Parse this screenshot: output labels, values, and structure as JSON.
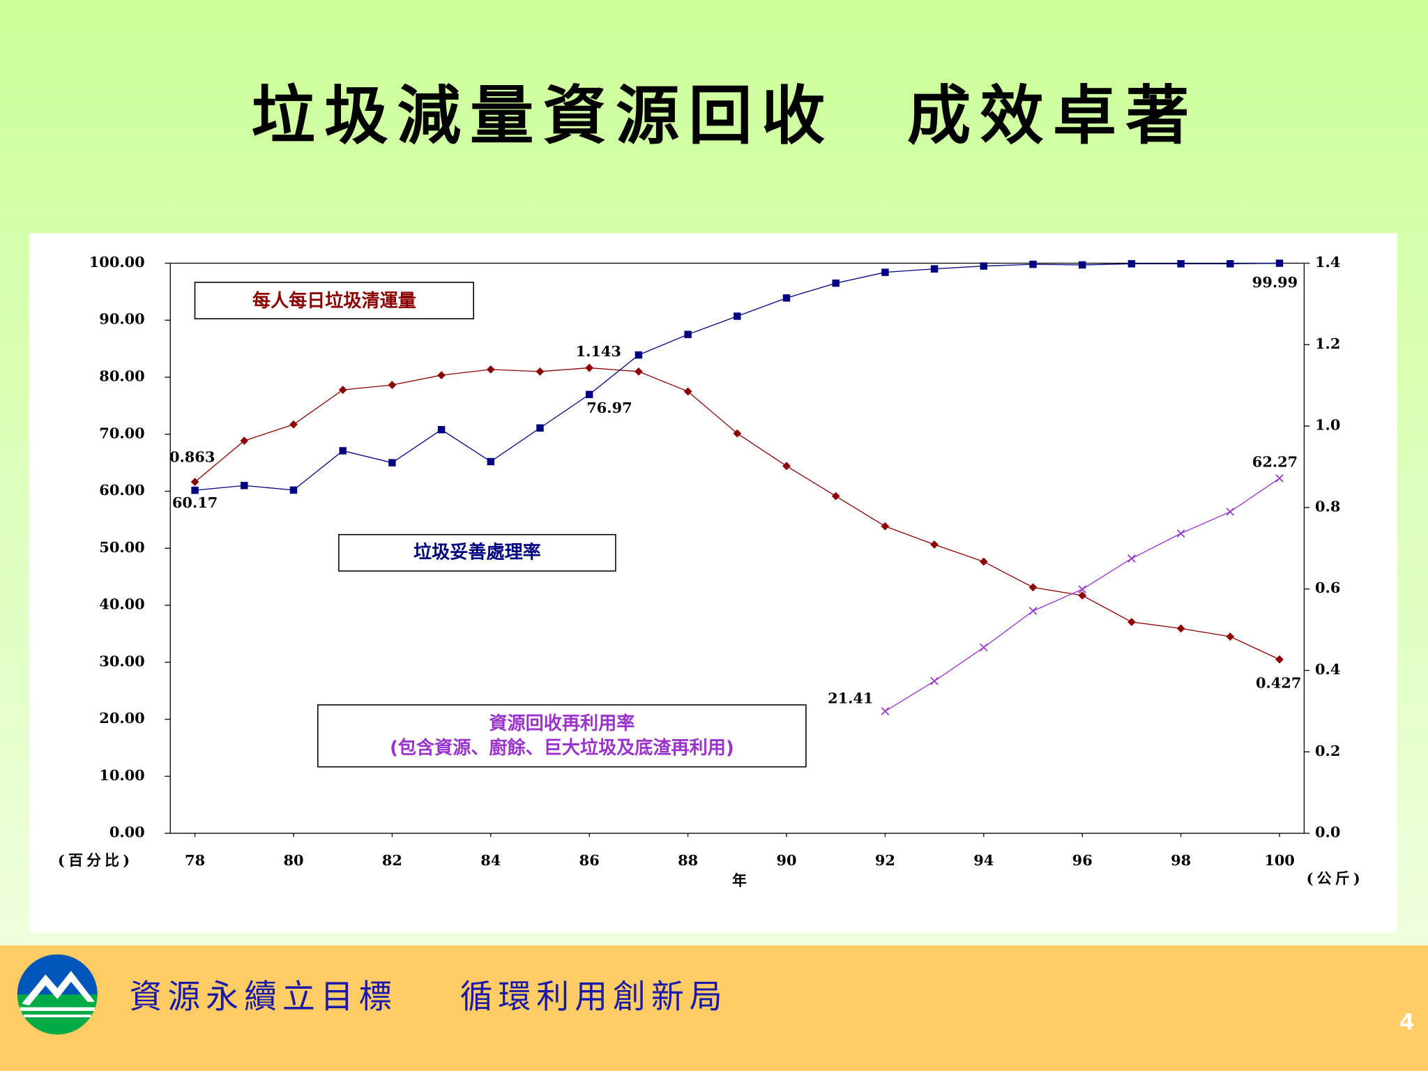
{
  "title": "垃圾減量資源回收　成效卓著",
  "footer": {
    "slogan_left": "資源永續立目標",
    "slogan_right": "循環利用創新局",
    "page_number": "4"
  },
  "chart_data": {
    "type": "line",
    "x": [
      78,
      79,
      80,
      81,
      82,
      83,
      84,
      85,
      86,
      87,
      88,
      89,
      90,
      91,
      92,
      93,
      94,
      95,
      96,
      97,
      98,
      99,
      100
    ],
    "xlim": [
      77.5,
      100.5
    ],
    "xticks": [
      78,
      80,
      82,
      84,
      86,
      88,
      90,
      92,
      94,
      96,
      98,
      100
    ],
    "xlabel": "年",
    "ylabel": "(百分比)",
    "y2label": "(公斤)",
    "ylim": [
      0,
      100
    ],
    "yticks": [
      {
        "value": 0,
        "label": "0.00"
      },
      {
        "value": 10,
        "label": "10.00"
      },
      {
        "value": 20,
        "label": "20.00"
      },
      {
        "value": 30,
        "label": "30.00"
      },
      {
        "value": 40,
        "label": "40.00"
      },
      {
        "value": 50,
        "label": "50.00"
      },
      {
        "value": 60,
        "label": "60.00"
      },
      {
        "value": 70,
        "label": "70.00"
      },
      {
        "value": 80,
        "label": "80.00"
      },
      {
        "value": 90,
        "label": "90.00"
      },
      {
        "value": 100,
        "label": "100.00"
      }
    ],
    "y2lim": [
      0,
      1.4
    ],
    "y2ticks": [
      {
        "value": 0,
        "label": "0.0"
      },
      0.2,
      0.4,
      0.6,
      0.8,
      {
        "value": 1,
        "label": "1.0"
      },
      1.2,
      1.4
    ],
    "series": [
      {
        "name": "每人每日垃圾清運量",
        "color": "#8b0000",
        "marker": "diamond",
        "axis": "y2",
        "values": [
          0.863,
          0.964,
          1.004,
          1.089,
          1.101,
          1.125,
          1.139,
          1.134,
          1.143,
          1.134,
          1.085,
          0.982,
          0.902,
          0.828,
          0.754,
          0.709,
          0.667,
          0.604,
          0.584,
          0.519,
          0.503,
          0.483,
          0.427
        ],
        "value_labels": [
          "0.863",
          null,
          null,
          null,
          null,
          null,
          null,
          null,
          "1.143",
          null,
          null,
          null,
          null,
          null,
          null,
          null,
          null,
          null,
          null,
          null,
          null,
          null,
          "0.427"
        ]
      },
      {
        "name": "垃圾妥善處理率",
        "color": "#000080",
        "marker": "square",
        "axis": "y",
        "values": [
          60.17,
          61.0,
          60.2,
          67.1,
          65.0,
          70.8,
          65.2,
          71.1,
          76.97,
          83.9,
          87.5,
          90.7,
          93.9,
          96.5,
          98.4,
          99.0,
          99.5,
          99.8,
          99.7,
          99.9,
          99.9,
          99.9,
          99.99
        ],
        "value_labels": [
          "60.17",
          null,
          null,
          null,
          null,
          null,
          null,
          null,
          "76.97",
          null,
          null,
          null,
          null,
          null,
          null,
          null,
          null,
          null,
          null,
          null,
          null,
          null,
          "99.99"
        ]
      },
      {
        "name": "資源回收再利用率",
        "subname": "(包含資源、廚餘、巨大垃圾及底渣再利用)",
        "color": "#9933cc",
        "marker": "x",
        "axis": "y",
        "values": [
          null,
          null,
          null,
          null,
          null,
          null,
          null,
          null,
          null,
          null,
          null,
          null,
          null,
          null,
          21.41,
          26.7,
          32.6,
          39.0,
          42.8,
          48.2,
          52.6,
          56.4,
          62.27
        ],
        "value_labels": [
          null,
          null,
          null,
          null,
          null,
          null,
          null,
          null,
          null,
          null,
          null,
          null,
          null,
          null,
          "21.41",
          null,
          null,
          null,
          null,
          null,
          null,
          null,
          "62.27"
        ]
      }
    ]
  }
}
